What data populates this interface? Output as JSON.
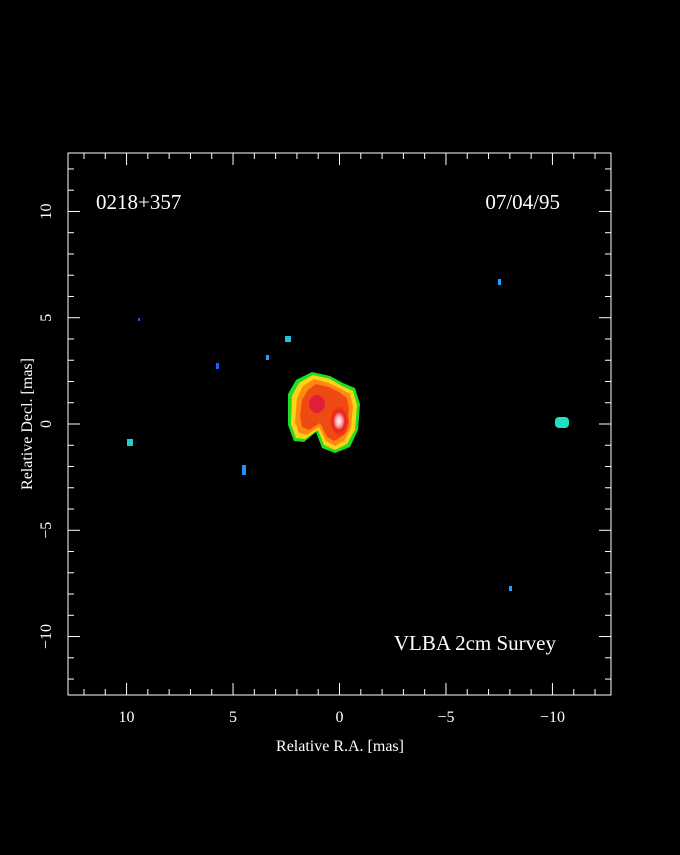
{
  "chart_data": {
    "type": "image",
    "title": "0218+357",
    "date": "07/04/95",
    "annotation": "VLBA 2cm Survey",
    "xlabel": "Relative R.A. [mas]",
    "ylabel": "Relative Decl. [mas]",
    "xlim": [
      12.75,
      -12.75
    ],
    "ylim": [
      -12.75,
      12.75
    ],
    "xticks": [
      10,
      5,
      0,
      {
        "value": -5,
        "label": "−5"
      },
      {
        "value": -10,
        "label": "−10"
      }
    ],
    "yticks": [
      {
        "value": -10,
        "label": "−10"
      },
      {
        "value": -5,
        "label": "−5"
      },
      0,
      5,
      10
    ]
  }
}
